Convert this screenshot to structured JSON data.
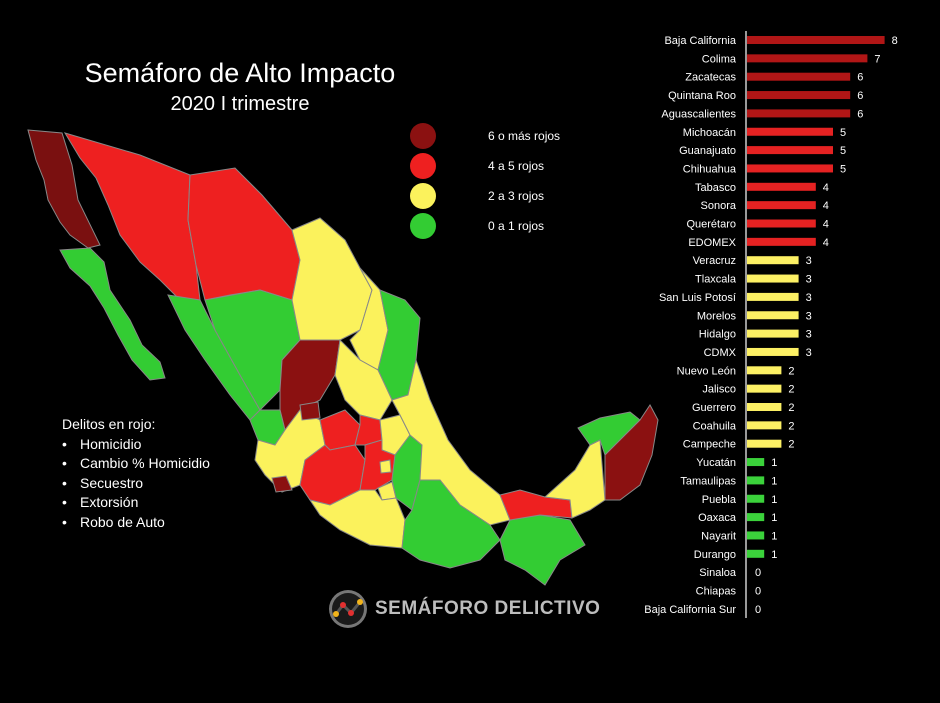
{
  "header": {
    "title": "Semáforo de Alto Impacto",
    "subtitle": "2020 I trimestre"
  },
  "legend": [
    {
      "label": "6 o más rojos",
      "color": "#8b1111"
    },
    {
      "label": "4 a 5 rojos",
      "color": "#ee2020"
    },
    {
      "label": "2 a 3  rojos",
      "color": "#fbf25c"
    },
    {
      "label": "0 a 1 rojos",
      "color": "#33cc33"
    }
  ],
  "crimes": {
    "heading": "Delitos en rojo:",
    "items": [
      "Homicidio",
      "Cambio % Homicidio",
      "Secuestro",
      "Extorsión",
      "Robo de Auto"
    ]
  },
  "logo": {
    "text": "SEMÁFORO DELICTIVO",
    "icon": "semaforo-logo-icon"
  },
  "chart_data": {
    "type": "bar",
    "orientation": "horizontal",
    "title": "",
    "xlim": [
      0,
      8
    ],
    "categories": [
      "Baja California",
      "Colima",
      "Zacatecas",
      "Quintana Roo",
      "Aguascalientes",
      "Michoacán",
      "Guanajuato",
      "Chihuahua",
      "Tabasco",
      "Sonora",
      "Querétaro",
      "EDOMEX",
      "Veracruz",
      "Tlaxcala",
      "San Luis Potosí",
      "Morelos",
      "Hidalgo",
      "CDMX",
      "Nuevo León",
      "Jalisco",
      "Guerrero",
      "Coahuila",
      "Campeche",
      "Yucatán",
      "Tamaulipas",
      "Puebla",
      "Oaxaca",
      "Nayarit",
      "Durango",
      "Sinaloa",
      "Chiapas",
      "Baja California Sur"
    ],
    "values": [
      8,
      7,
      6,
      6,
      6,
      5,
      5,
      5,
      4,
      4,
      4,
      4,
      3,
      3,
      3,
      3,
      3,
      3,
      2,
      2,
      2,
      2,
      2,
      1,
      1,
      1,
      1,
      1,
      1,
      0,
      0,
      0
    ],
    "colors": {
      "dark_red": "#b11616",
      "red": "#e52222",
      "yellow": "#fcf064",
      "green": "#3bd23b"
    }
  }
}
